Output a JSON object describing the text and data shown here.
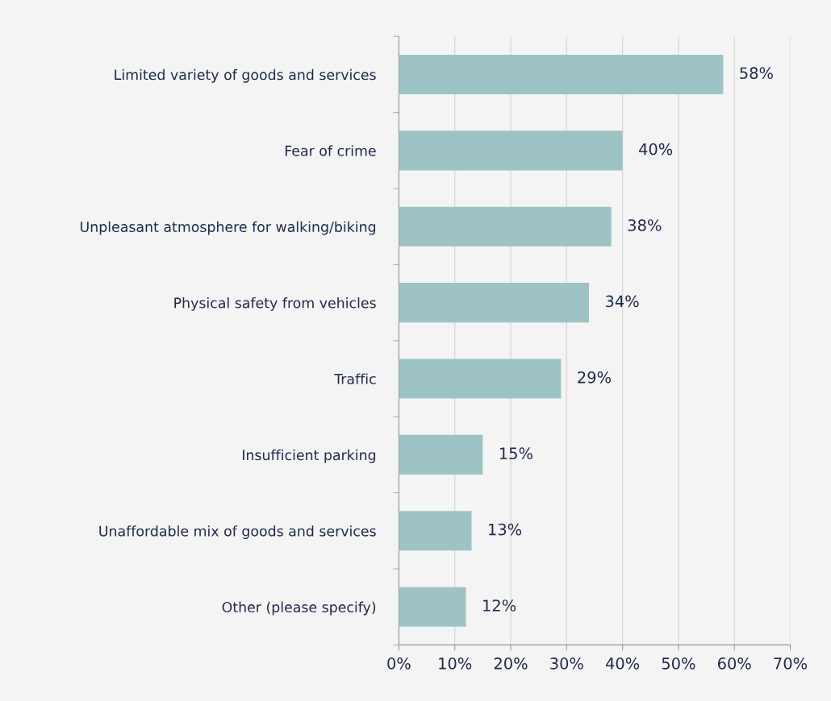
{
  "chart_data": {
    "type": "bar",
    "orientation": "horizontal",
    "categories": [
      "Limited variety of goods and services",
      "Fear of crime",
      "Unpleasant atmosphere for walking/biking",
      "Physical safety from vehicles",
      "Traffic",
      "Insufficient parking",
      "Unaffordable mix of goods and services",
      "Other (please specify)"
    ],
    "values": [
      58,
      40,
      38,
      34,
      29,
      15,
      13,
      12
    ],
    "value_labels": [
      "58%",
      "40%",
      "38%",
      "34%",
      "29%",
      "15%",
      "13%",
      "12%"
    ],
    "color": "#9dc3c4",
    "xlim": [
      0,
      70
    ],
    "xticks": [
      {
        "value": 0,
        "label": "0%"
      },
      {
        "value": 10,
        "label": "10%"
      },
      {
        "value": 20,
        "label": "20%"
      },
      {
        "value": 30,
        "label": "30%"
      },
      {
        "value": 40,
        "label": "40%"
      },
      {
        "value": 50,
        "label": "50%"
      },
      {
        "value": 60,
        "label": "60%"
      },
      {
        "value": 70,
        "label": "70%"
      }
    ],
    "grid": "x"
  }
}
